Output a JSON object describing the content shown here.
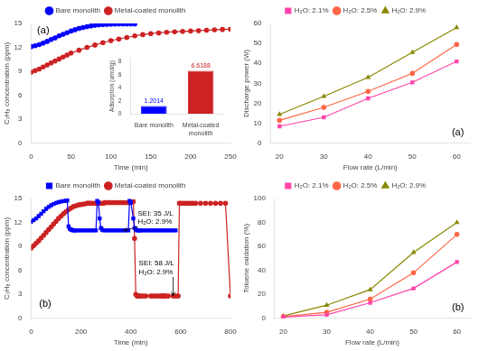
{
  "chart_data": [
    {
      "type": "line",
      "xlabel": "Time (min)",
      "ylabel": "C₇H₈ concentration (ppm)",
      "xlim": [
        0,
        250
      ],
      "xticks": [
        0,
        50,
        100,
        150,
        200,
        250
      ],
      "ylim": [
        0,
        15
      ],
      "yticks": [
        0,
        3,
        6,
        9,
        12,
        15
      ],
      "grid": false,
      "annotations": [
        {
          "text": "(a)"
        }
      ],
      "series": [
        {
          "name": "Bare monolith",
          "color": "blue",
          "marker": "circle",
          "x": [
            0,
            5,
            10,
            15,
            20,
            25,
            30,
            35,
            40,
            45,
            50,
            55,
            60,
            65,
            70,
            75,
            80,
            85,
            90,
            95,
            100,
            105,
            110,
            115,
            120,
            125,
            130
          ],
          "values": [
            12.1,
            12.2,
            12.35,
            12.55,
            12.75,
            13.0,
            13.2,
            13.45,
            13.65,
            13.85,
            14.05,
            14.22,
            14.38,
            14.5,
            14.6,
            14.7,
            14.78,
            14.83,
            14.87,
            14.9,
            14.92,
            14.93,
            14.94,
            14.95,
            14.95,
            14.95,
            14.95
          ]
        },
        {
          "name": "Metal-coated\nmonolith",
          "color": "#CC2222",
          "marker": "circle",
          "x": [
            0,
            5,
            10,
            15,
            20,
            25,
            30,
            35,
            40,
            45,
            50,
            60,
            70,
            80,
            90,
            100,
            110,
            120,
            130,
            140,
            150,
            160,
            170,
            180,
            190,
            200,
            210,
            220,
            230,
            240,
            250
          ],
          "values": [
            8.9,
            9.1,
            9.3,
            9.55,
            9.8,
            10.05,
            10.3,
            10.55,
            10.8,
            11.05,
            11.3,
            11.65,
            12.0,
            12.3,
            12.6,
            12.85,
            13.05,
            13.25,
            13.45,
            13.6,
            13.73,
            13.82,
            13.9,
            13.96,
            14.0,
            14.05,
            14.1,
            14.15,
            14.2,
            14.25,
            14.28
          ]
        }
      ]
    },
    {
      "type": "bar",
      "ylabel": "Adsorption (umol/g)",
      "categories": [
        "Bare monolith",
        "Metal-coated\nmonolith"
      ],
      "values": [
        1.2014,
        6.6188
      ],
      "colors": [
        "blue",
        "#CC2222"
      ],
      "ylim": [
        0,
        8.5
      ],
      "yticks": [
        0,
        2,
        4,
        6,
        8
      ],
      "grid": false,
      "data_labels": true
    },
    {
      "type": "line",
      "xlabel": "Time (min)",
      "ylabel": "C₇H₈ concentration (ppm)",
      "xlim": [
        0,
        800
      ],
      "xticks": [
        0,
        200,
        400,
        600,
        800
      ],
      "ylim": [
        0,
        15
      ],
      "yticks": [
        0,
        3,
        6,
        9,
        12,
        15
      ],
      "grid": false,
      "annotations": [
        {
          "text": "(b)"
        },
        {
          "text": "SEI: 35 J/L\nH₂O: 2.9%",
          "x": 370,
          "y": 11.0
        },
        {
          "text": "SEI: 58 J/L\nH₂O: 2.9%",
          "x": 570,
          "y": 2.8
        }
      ],
      "series": [
        {
          "name": "Bare monolith",
          "color": "blue",
          "marker": "square",
          "x": [
            0,
            10,
            20,
            30,
            40,
            50,
            60,
            70,
            80,
            90,
            100,
            110,
            120,
            130,
            140,
            145,
            150,
            155,
            160,
            165,
            170,
            175,
            180,
            190,
            200,
            210,
            220,
            230,
            240,
            250,
            260,
            265,
            270,
            275,
            280,
            285,
            290,
            300,
            310,
            320,
            330,
            340,
            350,
            360,
            370,
            380,
            390,
            395,
            400,
            410,
            415,
            420,
            425,
            430,
            435,
            440,
            450,
            460,
            470,
            480,
            490,
            500,
            510,
            520,
            530,
            540,
            550,
            560,
            570,
            580
          ],
          "values": [
            12.1,
            12.3,
            12.5,
            12.8,
            13.1,
            13.4,
            13.7,
            13.95,
            14.15,
            14.3,
            14.45,
            14.55,
            14.62,
            14.68,
            14.72,
            14.75,
            11.5,
            11.2,
            11.1,
            11.05,
            11.0,
            11.0,
            11.0,
            11.0,
            11.0,
            11.0,
            11.0,
            11.0,
            11.0,
            11.0,
            11.0,
            14.7,
            14.5,
            12.5,
            11.3,
            11.1,
            11.0,
            11.0,
            11.0,
            11.0,
            11.0,
            11.0,
            11.0,
            11.0,
            11.0,
            11.0,
            11.0,
            14.7,
            14.5,
            12.5,
            11.3,
            11.1,
            11.0,
            11.0,
            11.0,
            11.0,
            11.0,
            11.0,
            11.0,
            11.0,
            11.0,
            11.0,
            11.0,
            11.0,
            11.0,
            11.0,
            11.0,
            11.0,
            11.0,
            11.0
          ]
        },
        {
          "name": "Metal-coated\nmonolith",
          "color": "#CC2222",
          "marker": "circle",
          "x": [
            0,
            10,
            20,
            30,
            40,
            50,
            60,
            70,
            80,
            90,
            100,
            110,
            120,
            130,
            140,
            150,
            160,
            170,
            180,
            190,
            200,
            210,
            220,
            225,
            230,
            235,
            240,
            250,
            260,
            270,
            280,
            290,
            295,
            300,
            310,
            320,
            330,
            340,
            350,
            360,
            370,
            380,
            390,
            400,
            410,
            415,
            420,
            425,
            430,
            435,
            440,
            450,
            460,
            480,
            490,
            500,
            510,
            520,
            525,
            530,
            535,
            540,
            550,
            570,
            580,
            590,
            595,
            600,
            610,
            620,
            630,
            640,
            650,
            660,
            680,
            700,
            720,
            740,
            760,
            780,
            800
          ],
          "values": [
            8.8,
            9.1,
            9.4,
            9.7,
            10.05,
            10.4,
            10.75,
            11.1,
            11.45,
            11.8,
            12.15,
            12.5,
            12.8,
            13.1,
            13.35,
            13.6,
            13.8,
            14.0,
            14.1,
            14.2,
            14.25,
            14.3,
            14.35,
            14.4,
            14.4,
            14.4,
            14.4,
            14.4,
            14.4,
            14.4,
            14.4,
            14.4,
            14.5,
            14.5,
            14.5,
            14.5,
            14.5,
            14.5,
            14.5,
            14.5,
            14.5,
            14.5,
            14.5,
            14.5,
            14.6,
            10.0,
            3.0,
            2.8,
            2.8,
            2.8,
            2.8,
            2.8,
            2.8,
            2.8,
            2.8,
            2.8,
            2.8,
            2.8,
            2.8,
            2.8,
            2.8,
            2.8,
            2.8,
            2.8,
            2.8,
            2.8,
            14.4,
            14.4,
            14.4,
            14.4,
            14.4,
            14.4,
            14.4,
            14.4,
            14.4,
            14.4,
            14.4,
            14.4,
            14.4,
            14.4,
            2.8
          ]
        }
      ]
    },
    {
      "type": "line",
      "xlabel": "Flow rate (L/min)",
      "ylabel": "Discharge power (W)",
      "x": [
        20,
        30,
        40,
        50,
        60
      ],
      "xlim": [
        18,
        63
      ],
      "xticks": [
        20,
        30,
        40,
        50,
        60
      ],
      "ylim": [
        0,
        60
      ],
      "yticks": [
        0,
        10,
        20,
        30,
        40,
        50,
        60
      ],
      "grid": false,
      "annotations": [
        {
          "text": "(a)"
        }
      ],
      "series": [
        {
          "name": "H₂O: 2.1%",
          "color": "#FF44AA",
          "marker": "square",
          "values": [
            8.5,
            13.0,
            22.5,
            30.5,
            41.0
          ]
        },
        {
          "name": "H₂O: 2.5%",
          "color": "#FF6644",
          "marker": "circle",
          "values": [
            11.5,
            18.0,
            26.0,
            35.0,
            49.5
          ]
        },
        {
          "name": "H₂O: 2.9%",
          "color": "#888800",
          "marker": "triangle",
          "values": [
            14.5,
            23.5,
            33.0,
            45.5,
            58.0
          ]
        }
      ]
    },
    {
      "type": "line",
      "xlabel": "Flow rate (L/min)",
      "ylabel": "Toluene oxidation (%)",
      "x": [
        20,
        30,
        40,
        50,
        60
      ],
      "xlim": [
        18,
        63
      ],
      "xticks": [
        20,
        30,
        40,
        50,
        60
      ],
      "ylim": [
        0,
        100
      ],
      "yticks": [
        0,
        20,
        40,
        60,
        80,
        100
      ],
      "grid": false,
      "annotations": [
        {
          "text": "(b)"
        }
      ],
      "series": [
        {
          "name": "H₂O: 2.1%",
          "color": "#FF44AA",
          "marker": "square",
          "values": [
            1.0,
            3.0,
            13.0,
            25.0,
            47.0
          ]
        },
        {
          "name": "H₂O: 2.5%",
          "color": "#FF6644",
          "marker": "circle",
          "values": [
            1.5,
            5.0,
            16.0,
            38.0,
            70.0
          ]
        },
        {
          "name": "H₂O: 2.9%",
          "color": "#888800",
          "marker": "triangle",
          "values": [
            2.0,
            11.0,
            24.0,
            55.0,
            80.0
          ]
        }
      ]
    }
  ]
}
